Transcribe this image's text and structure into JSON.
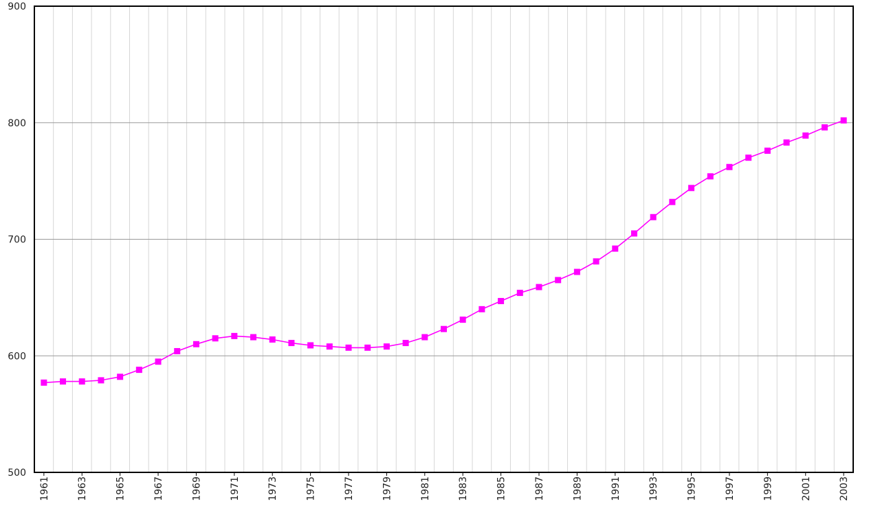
{
  "chart_data": {
    "type": "line",
    "title": "",
    "xlabel": "",
    "ylabel": "",
    "x": [
      1961,
      1962,
      1963,
      1964,
      1965,
      1966,
      1967,
      1968,
      1969,
      1970,
      1971,
      1972,
      1973,
      1974,
      1975,
      1976,
      1977,
      1978,
      1979,
      1980,
      1981,
      1982,
      1983,
      1984,
      1985,
      1986,
      1987,
      1988,
      1989,
      1990,
      1991,
      1992,
      1993,
      1994,
      1995,
      1996,
      1997,
      1998,
      1999,
      2000,
      2001,
      2002,
      2003
    ],
    "series": [
      {
        "values": [
          577,
          578,
          578,
          579,
          582,
          588,
          595,
          604,
          610,
          615,
          617,
          616,
          614,
          611,
          609,
          608,
          607,
          607,
          608,
          611,
          616,
          623,
          631,
          640,
          647,
          654,
          659,
          665,
          672,
          681,
          692,
          705,
          719,
          732,
          744,
          754,
          762,
          770,
          776,
          783,
          789,
          796,
          802
        ],
        "color": "#ff00ff"
      }
    ],
    "ylim": [
      500,
      900
    ],
    "y_ticks": [
      "500",
      "600",
      "700",
      "800",
      "900"
    ],
    "x_tick_labels": [
      "1961",
      "1963",
      "1965",
      "1967",
      "1969",
      "1971",
      "1973",
      "1975",
      "1977",
      "1979",
      "1981",
      "1983",
      "1985",
      "1987",
      "1989",
      "1991",
      "1993",
      "1995",
      "1997",
      "1999",
      "2001",
      "2003"
    ],
    "grid": true,
    "legend": "none",
    "marker": "square"
  }
}
